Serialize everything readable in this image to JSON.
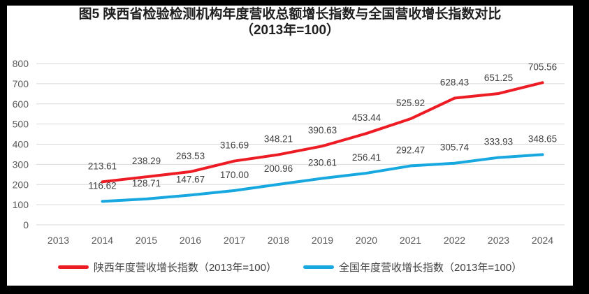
{
  "title": {
    "line1": "图5  陕西省检验检测机构年度营收总额增长指数与全国营收增长指数对比",
    "line2": "（2013年=100）"
  },
  "colors": {
    "frame": "#000000",
    "background": "#ffffff",
    "title_text": "#1f1f1f",
    "gridline": "#d9d9d9",
    "axis_text": "#595959",
    "data_label_text": "#3f3f3f",
    "legend_text": "#3f3f3f",
    "series_shaanxi": "#ed1c24",
    "series_national": "#18a8e0"
  },
  "chart_data": {
    "type": "line",
    "title": "图5  陕西省检验检测机构年度营收总额增长指数与全国营收增长指数对比（2013年=100）",
    "categories": [
      "2013",
      "2014",
      "2015",
      "2016",
      "2017",
      "2018",
      "2019",
      "2020",
      "2021",
      "2022",
      "2023",
      "2024"
    ],
    "series": [
      {
        "id": "shaanxi",
        "name": "陕西年度营收增长指数（2013年=100）",
        "color": "#ed1c24",
        "values": [
          null,
          213.61,
          238.29,
          263.53,
          316.69,
          348.21,
          390.63,
          453.44,
          525.92,
          628.43,
          651.25,
          705.56
        ]
      },
      {
        "id": "national",
        "name": "全国年度营收增长指数（2013年=100）",
        "color": "#18a8e0",
        "values": [
          null,
          116.62,
          128.71,
          147.67,
          170.0,
          200.96,
          230.61,
          256.41,
          292.47,
          305.74,
          333.93,
          348.65
        ]
      }
    ],
    "ylim": [
      0,
      800
    ],
    "ytick_step": 100,
    "yticks": [
      0,
      100,
      200,
      300,
      400,
      500,
      600,
      700,
      800
    ],
    "grid": true,
    "data_labels": true,
    "data_label_decimals": 2,
    "legend_position": "bottom",
    "xlabel": "",
    "ylabel": ""
  }
}
